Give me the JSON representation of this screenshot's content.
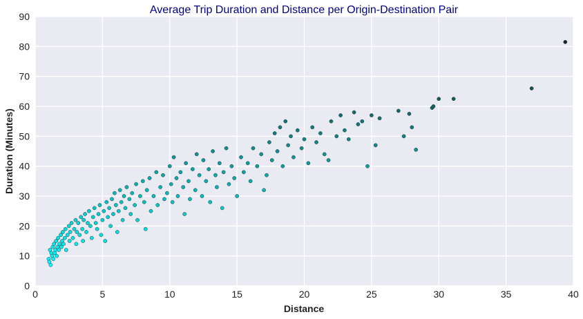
{
  "chart_data": {
    "type": "scatter",
    "title": "Average Trip Duration and Distance per Origin-Destination Pair",
    "xlabel": "Distance",
    "ylabel": "Duration (Minutes)",
    "xlim": [
      0,
      40
    ],
    "ylim": [
      0,
      90
    ],
    "xticks": [
      0,
      5,
      10,
      15,
      20,
      25,
      30,
      35,
      40
    ],
    "yticks": [
      0,
      10,
      20,
      30,
      40,
      50,
      60,
      70,
      80,
      90
    ],
    "grid": true,
    "color_scale": {
      "low": "#00FFFF",
      "high": "#222222",
      "encodes": "Duration (Minutes)"
    },
    "points": [
      {
        "x": 1.0,
        "y": 9
      },
      {
        "x": 1.05,
        "y": 8
      },
      {
        "x": 1.1,
        "y": 12
      },
      {
        "x": 1.15,
        "y": 7
      },
      {
        "x": 1.2,
        "y": 11
      },
      {
        "x": 1.25,
        "y": 10
      },
      {
        "x": 1.3,
        "y": 13
      },
      {
        "x": 1.35,
        "y": 9
      },
      {
        "x": 1.4,
        "y": 14
      },
      {
        "x": 1.45,
        "y": 11
      },
      {
        "x": 1.5,
        "y": 12
      },
      {
        "x": 1.55,
        "y": 15
      },
      {
        "x": 1.6,
        "y": 10
      },
      {
        "x": 1.65,
        "y": 13
      },
      {
        "x": 1.7,
        "y": 16
      },
      {
        "x": 1.75,
        "y": 12
      },
      {
        "x": 1.8,
        "y": 14
      },
      {
        "x": 1.9,
        "y": 17
      },
      {
        "x": 1.95,
        "y": 13
      },
      {
        "x": 2.0,
        "y": 15
      },
      {
        "x": 2.05,
        "y": 18
      },
      {
        "x": 2.1,
        "y": 14
      },
      {
        "x": 2.2,
        "y": 16
      },
      {
        "x": 2.25,
        "y": 19
      },
      {
        "x": 2.3,
        "y": 12
      },
      {
        "x": 2.4,
        "y": 17
      },
      {
        "x": 2.5,
        "y": 20
      },
      {
        "x": 2.55,
        "y": 15
      },
      {
        "x": 2.6,
        "y": 18
      },
      {
        "x": 2.7,
        "y": 21
      },
      {
        "x": 2.8,
        "y": 16
      },
      {
        "x": 2.9,
        "y": 19
      },
      {
        "x": 3.0,
        "y": 22
      },
      {
        "x": 3.05,
        "y": 14
      },
      {
        "x": 3.1,
        "y": 18
      },
      {
        "x": 3.2,
        "y": 21
      },
      {
        "x": 3.3,
        "y": 17
      },
      {
        "x": 3.4,
        "y": 23
      },
      {
        "x": 3.5,
        "y": 19
      },
      {
        "x": 3.55,
        "y": 15
      },
      {
        "x": 3.6,
        "y": 22
      },
      {
        "x": 3.7,
        "y": 24
      },
      {
        "x": 3.8,
        "y": 18
      },
      {
        "x": 3.9,
        "y": 21
      },
      {
        "x": 4.0,
        "y": 25
      },
      {
        "x": 4.1,
        "y": 20
      },
      {
        "x": 4.2,
        "y": 16
      },
      {
        "x": 4.3,
        "y": 23
      },
      {
        "x": 4.4,
        "y": 26
      },
      {
        "x": 4.5,
        "y": 21
      },
      {
        "x": 4.6,
        "y": 19
      },
      {
        "x": 4.7,
        "y": 24
      },
      {
        "x": 4.8,
        "y": 27
      },
      {
        "x": 4.9,
        "y": 17
      },
      {
        "x": 5.0,
        "y": 22
      },
      {
        "x": 5.1,
        "y": 25
      },
      {
        "x": 5.2,
        "y": 15
      },
      {
        "x": 5.3,
        "y": 28
      },
      {
        "x": 5.4,
        "y": 23
      },
      {
        "x": 5.5,
        "y": 26
      },
      {
        "x": 5.6,
        "y": 20
      },
      {
        "x": 5.7,
        "y": 29
      },
      {
        "x": 5.8,
        "y": 24
      },
      {
        "x": 5.9,
        "y": 31
      },
      {
        "x": 6.0,
        "y": 27
      },
      {
        "x": 6.1,
        "y": 18
      },
      {
        "x": 6.2,
        "y": 25
      },
      {
        "x": 6.3,
        "y": 32
      },
      {
        "x": 6.4,
        "y": 28
      },
      {
        "x": 6.5,
        "y": 22
      },
      {
        "x": 6.6,
        "y": 30
      },
      {
        "x": 6.7,
        "y": 26
      },
      {
        "x": 6.8,
        "y": 33
      },
      {
        "x": 7.0,
        "y": 29
      },
      {
        "x": 7.1,
        "y": 24
      },
      {
        "x": 7.2,
        "y": 31
      },
      {
        "x": 7.4,
        "y": 27
      },
      {
        "x": 7.5,
        "y": 34
      },
      {
        "x": 7.6,
        "y": 22
      },
      {
        "x": 7.8,
        "y": 30
      },
      {
        "x": 8.0,
        "y": 35
      },
      {
        "x": 8.1,
        "y": 28
      },
      {
        "x": 8.2,
        "y": 19
      },
      {
        "x": 8.3,
        "y": 32
      },
      {
        "x": 8.5,
        "y": 36
      },
      {
        "x": 8.6,
        "y": 25
      },
      {
        "x": 8.8,
        "y": 30
      },
      {
        "x": 9.0,
        "y": 38
      },
      {
        "x": 9.1,
        "y": 27
      },
      {
        "x": 9.3,
        "y": 33
      },
      {
        "x": 9.5,
        "y": 37
      },
      {
        "x": 9.6,
        "y": 29
      },
      {
        "x": 9.8,
        "y": 31
      },
      {
        "x": 10.0,
        "y": 40
      },
      {
        "x": 10.1,
        "y": 34
      },
      {
        "x": 10.2,
        "y": 28
      },
      {
        "x": 10.3,
        "y": 43
      },
      {
        "x": 10.5,
        "y": 36
      },
      {
        "x": 10.6,
        "y": 30
      },
      {
        "x": 10.8,
        "y": 38
      },
      {
        "x": 11.0,
        "y": 33
      },
      {
        "x": 11.1,
        "y": 24
      },
      {
        "x": 11.2,
        "y": 41
      },
      {
        "x": 11.4,
        "y": 35
      },
      {
        "x": 11.5,
        "y": 29
      },
      {
        "x": 11.7,
        "y": 39
      },
      {
        "x": 11.9,
        "y": 32
      },
      {
        "x": 12.0,
        "y": 44
      },
      {
        "x": 12.2,
        "y": 37
      },
      {
        "x": 12.4,
        "y": 30
      },
      {
        "x": 12.5,
        "y": 42
      },
      {
        "x": 12.7,
        "y": 35
      },
      {
        "x": 12.9,
        "y": 39
      },
      {
        "x": 13.0,
        "y": 28
      },
      {
        "x": 13.2,
        "y": 45
      },
      {
        "x": 13.4,
        "y": 37
      },
      {
        "x": 13.5,
        "y": 33
      },
      {
        "x": 13.7,
        "y": 41
      },
      {
        "x": 13.9,
        "y": 26
      },
      {
        "x": 14.0,
        "y": 38
      },
      {
        "x": 14.2,
        "y": 46
      },
      {
        "x": 14.4,
        "y": 34
      },
      {
        "x": 14.6,
        "y": 40
      },
      {
        "x": 14.8,
        "y": 36
      },
      {
        "x": 15.0,
        "y": 30
      },
      {
        "x": 15.3,
        "y": 43
      },
      {
        "x": 15.5,
        "y": 38
      },
      {
        "x": 15.8,
        "y": 41
      },
      {
        "x": 16.0,
        "y": 35
      },
      {
        "x": 16.2,
        "y": 46
      },
      {
        "x": 16.5,
        "y": 40
      },
      {
        "x": 16.8,
        "y": 44
      },
      {
        "x": 17.0,
        "y": 32
      },
      {
        "x": 17.2,
        "y": 37
      },
      {
        "x": 17.4,
        "y": 48
      },
      {
        "x": 17.6,
        "y": 42
      },
      {
        "x": 17.8,
        "y": 51
      },
      {
        "x": 18.0,
        "y": 45
      },
      {
        "x": 18.2,
        "y": 53
      },
      {
        "x": 18.4,
        "y": 40
      },
      {
        "x": 18.6,
        "y": 55
      },
      {
        "x": 18.8,
        "y": 47
      },
      {
        "x": 19.0,
        "y": 50
      },
      {
        "x": 19.2,
        "y": 43
      },
      {
        "x": 19.5,
        "y": 52
      },
      {
        "x": 19.8,
        "y": 46
      },
      {
        "x": 20.0,
        "y": 49
      },
      {
        "x": 20.3,
        "y": 41
      },
      {
        "x": 20.6,
        "y": 53
      },
      {
        "x": 20.9,
        "y": 48
      },
      {
        "x": 21.2,
        "y": 51
      },
      {
        "x": 21.5,
        "y": 44
      },
      {
        "x": 21.8,
        "y": 42
      },
      {
        "x": 22.0,
        "y": 55
      },
      {
        "x": 22.4,
        "y": 50
      },
      {
        "x": 22.7,
        "y": 57
      },
      {
        "x": 23.0,
        "y": 52
      },
      {
        "x": 23.3,
        "y": 49
      },
      {
        "x": 23.7,
        "y": 58
      },
      {
        "x": 24.0,
        "y": 54
      },
      {
        "x": 24.3,
        "y": 55
      },
      {
        "x": 24.7,
        "y": 40
      },
      {
        "x": 25.0,
        "y": 57
      },
      {
        "x": 25.3,
        "y": 47
      },
      {
        "x": 25.6,
        "y": 56
      },
      {
        "x": 27.0,
        "y": 58.5
      },
      {
        "x": 27.4,
        "y": 50
      },
      {
        "x": 27.8,
        "y": 57.5
      },
      {
        "x": 28.0,
        "y": 53
      },
      {
        "x": 28.3,
        "y": 45.5
      },
      {
        "x": 29.5,
        "y": 59.5
      },
      {
        "x": 29.6,
        "y": 60
      },
      {
        "x": 30.0,
        "y": 62.5
      },
      {
        "x": 31.1,
        "y": 62.5
      },
      {
        "x": 36.9,
        "y": 66
      },
      {
        "x": 39.4,
        "y": 81.5
      }
    ]
  }
}
